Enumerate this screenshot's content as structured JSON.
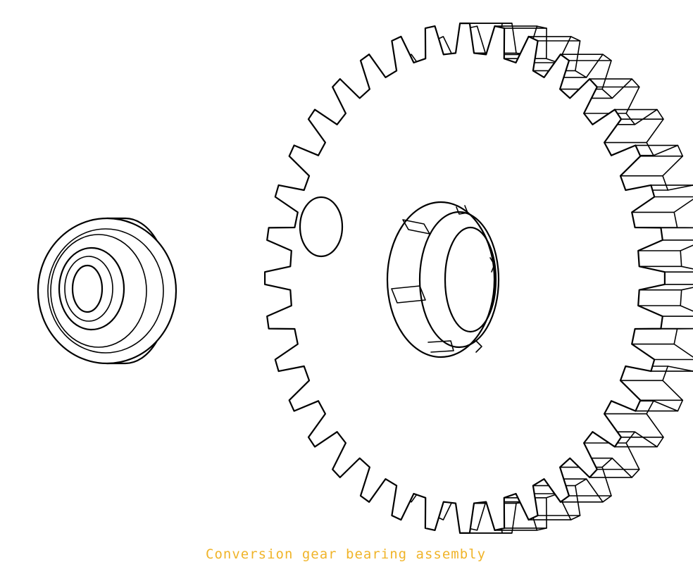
{
  "caption": {
    "text": "Conversion gear bearing assembly",
    "color": "#f0b429"
  },
  "line_color": "#000000",
  "background_color": "#ffffff",
  "parts": {
    "bearing": {
      "type": "ball bearing",
      "shape": "ring"
    },
    "gear": {
      "type": "spur gear",
      "teeth_count": 36,
      "features": [
        "through-hole",
        "keyed hub bore"
      ]
    }
  }
}
